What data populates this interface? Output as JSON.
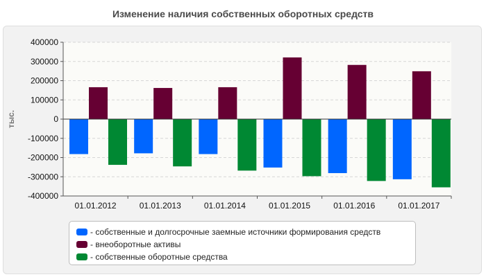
{
  "chart_data": {
    "type": "bar",
    "title": "Изменение наличия собственных оборотных средств",
    "ylabel": "тыс.",
    "xlabel": "",
    "ylim": [
      -400000,
      400000
    ],
    "yticks": [
      400000,
      300000,
      200000,
      100000,
      0,
      -100000,
      -200000,
      -300000,
      -400000
    ],
    "grid": true,
    "legend_position": "bottom",
    "categories": [
      "01.01.2012",
      "01.01.2013",
      "01.01.2014",
      "01.01.2015",
      "01.01.2016",
      "01.01.2017"
    ],
    "series": [
      {
        "name": "- собственные и долгосрочные заемные источники формирования средств",
        "color": "#0066ff",
        "values": [
          -182000,
          -178000,
          -182000,
          -252000,
          -281000,
          -313000
        ]
      },
      {
        "name": "- внеоборотные активы",
        "color": "#660033",
        "values": [
          166000,
          162000,
          166000,
          321000,
          282000,
          249000
        ]
      },
      {
        "name": "- собственные оборотные средства",
        "color": "#008833",
        "values": [
          -238000,
          -246000,
          -268000,
          -297000,
          -322000,
          -355000
        ]
      }
    ]
  }
}
